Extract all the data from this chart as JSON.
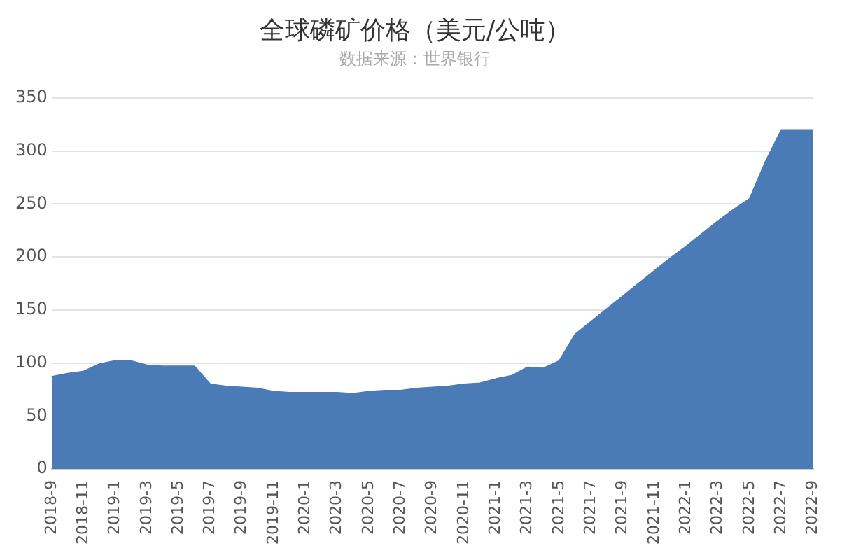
{
  "chart_data": {
    "type": "area",
    "title": "全球磷矿价格（美元/公吨）",
    "subtitle": "数据来源：世界银行",
    "categories": [
      "2018-9",
      null,
      "2018-11",
      null,
      "2019-1",
      null,
      "2019-3",
      null,
      "2019-5",
      null,
      "2019-7",
      null,
      "2019-9",
      null,
      "2019-11",
      null,
      "2020-1",
      null,
      "2020-3",
      null,
      "2020-5",
      null,
      "2020-7",
      null,
      "2020-9",
      null,
      "2020-11",
      null,
      "2021-1",
      null,
      "2021-3",
      null,
      "2021-5",
      null,
      "2021-7",
      null,
      "2021-9",
      null,
      "2021-11",
      null,
      "2022-1",
      null,
      "2022-3",
      null,
      "2022-5",
      null,
      "2022-7",
      null,
      "2022-9"
    ],
    "series": [
      {
        "color": "#4a7bb7",
        "values": [
          87,
          90,
          92,
          99,
          102,
          102,
          98,
          97,
          97,
          97,
          80,
          78,
          77,
          76,
          73,
          72,
          72,
          72,
          72,
          71,
          73,
          74,
          74,
          76,
          77,
          78,
          80,
          81,
          85,
          88,
          96,
          95,
          102,
          127,
          139,
          151,
          163,
          175,
          187,
          199,
          210,
          222,
          234,
          245,
          255,
          290,
          320,
          320,
          320
        ]
      }
    ],
    "ylim": [
      0,
      350
    ],
    "yticks": [
      0,
      50,
      100,
      150,
      200,
      250,
      300,
      350
    ],
    "grid": "y",
    "legend": false
  }
}
